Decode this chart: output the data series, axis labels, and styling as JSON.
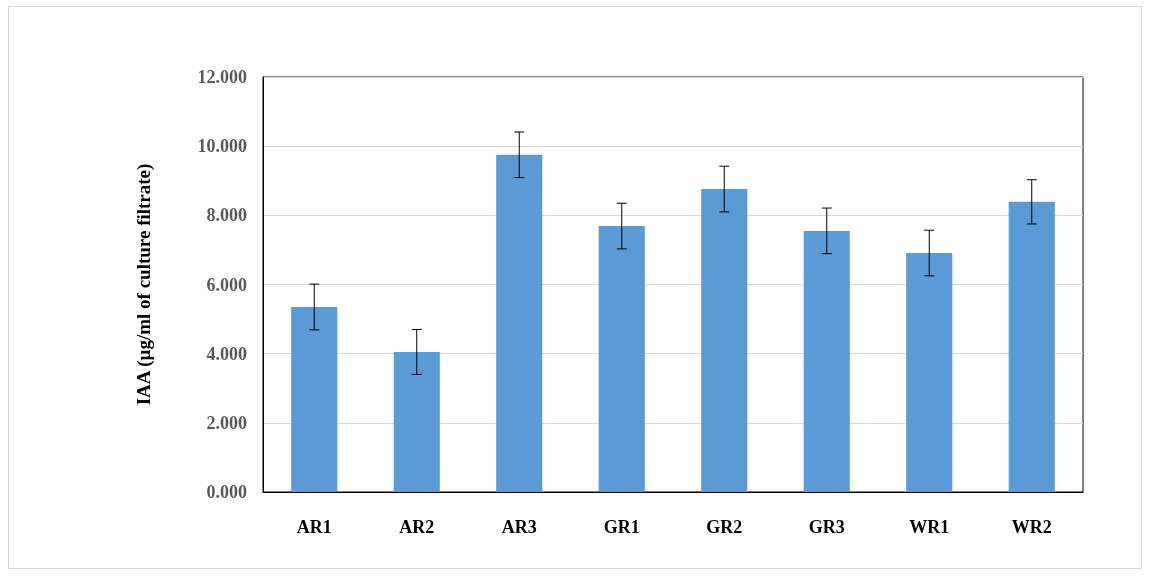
{
  "chart_data": {
    "type": "bar",
    "ylabel": "IAA (µg/ml of culture filtrate)",
    "categories": [
      "AR1",
      "AR2",
      "AR3",
      "GR1",
      "GR2",
      "GR3",
      "WR1",
      "WR2"
    ],
    "values": [
      5.35,
      4.05,
      9.75,
      7.69,
      8.76,
      7.55,
      6.91,
      8.39
    ],
    "errors": [
      0.66,
      0.65,
      0.66,
      0.66,
      0.66,
      0.66,
      0.66,
      0.64
    ],
    "color": "#5b9bd5",
    "ylim": [
      0,
      12
    ],
    "yticks": [
      {
        "value": 0,
        "label": "0.000"
      },
      {
        "value": 2,
        "label": "2.000"
      },
      {
        "value": 4,
        "label": "4.000"
      },
      {
        "value": 6,
        "label": "6.000"
      },
      {
        "value": 8,
        "label": "8.000"
      },
      {
        "value": 10,
        "label": "10.000"
      },
      {
        "value": 12,
        "label": "12.000"
      }
    ],
    "grid": "y"
  }
}
